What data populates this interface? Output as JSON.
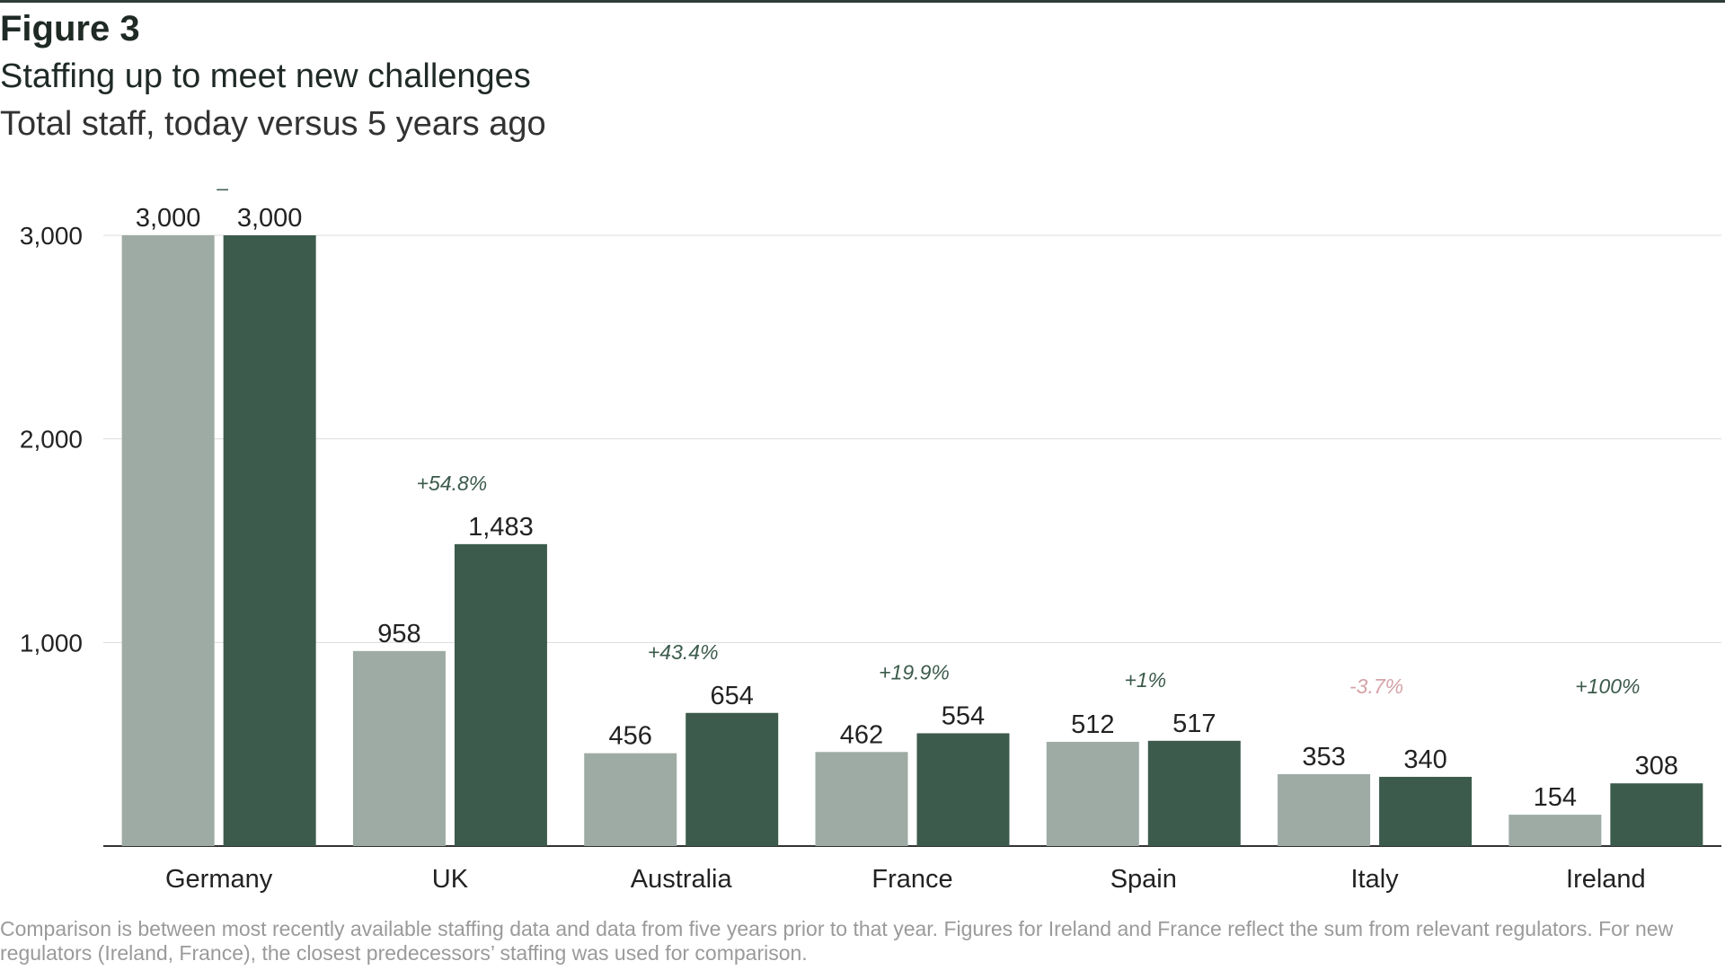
{
  "figure_label": "Figure 3",
  "title": "Staffing up to meet new challenges",
  "subtitle": "Total staff, today versus 5 years ago",
  "footnote": "Comparison is between most recently available staffing data and data from five years prior to that year. Figures for Ireland and France reflect the sum from relevant regulators. For new regulators (Ireland, France), the closest predecessors’ staffing was used for comparison.",
  "colors": {
    "five_years_ago": "#9eaba4",
    "today": "#3c5b4c",
    "increase": "#3c5b4c",
    "decrease": "#d4a2a8",
    "gridline": "#dcdcdc",
    "baseline": "#333333"
  },
  "chart_data": {
    "type": "bar",
    "title": "Staffing up to meet new challenges",
    "subtitle": "Total staff, today versus 5 years ago",
    "xlabel": "",
    "ylabel": "",
    "ylim": [
      0,
      3000
    ],
    "yticks": [
      1000,
      2000,
      3000
    ],
    "ytick_labels": [
      "1,000",
      "2,000",
      "3,000"
    ],
    "grid": true,
    "categories": [
      "Germany",
      "UK",
      "Australia",
      "France",
      "Spain",
      "Italy",
      "Ireland"
    ],
    "series": [
      {
        "name": "5 years ago",
        "values": [
          3000,
          958,
          456,
          462,
          512,
          353,
          154
        ],
        "labels": [
          "3,000",
          "958",
          "456",
          "462",
          "512",
          "353",
          "154"
        ]
      },
      {
        "name": "Today",
        "values": [
          3000,
          1483,
          654,
          554,
          517,
          340,
          308
        ],
        "labels": [
          "3,000",
          "1,483",
          "654",
          "554",
          "517",
          "340",
          "308"
        ]
      }
    ],
    "changes": [
      "–",
      "+54.8%",
      "+43.4%",
      "+19.9%",
      "+1%",
      "-3.7%",
      "+100%"
    ],
    "change_direction": [
      "none",
      "up",
      "up",
      "up",
      "up",
      "down",
      "up"
    ]
  }
}
